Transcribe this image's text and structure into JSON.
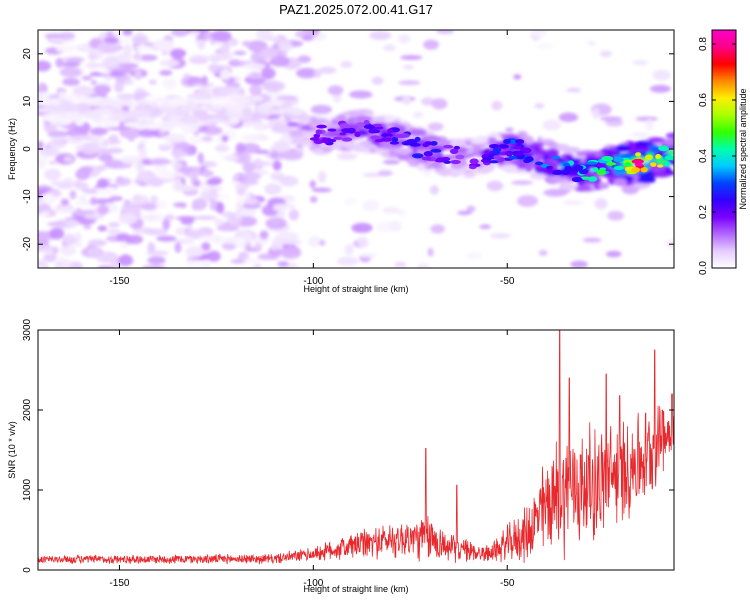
{
  "title": "PAZ1.2025.072.00.41.G17",
  "chart_data": [
    {
      "type": "heatmap",
      "xlabel": "Height of straight line (km)",
      "ylabel": "Frequency (Hz)",
      "xlim": [
        -171,
        -7
      ],
      "ylim": [
        -25,
        25
      ],
      "xticks": [
        -150,
        -100,
        -50
      ],
      "yticks": [
        20,
        10,
        0,
        -10,
        -20
      ],
      "colorbar": {
        "label": "Normalized spectral amplitude",
        "range": [
          0,
          0.85
        ],
        "ticks": [
          0.0,
          0.2,
          0.4,
          0.6,
          0.8
        ],
        "colors": [
          "#ffffff",
          "#e6ccff",
          "#b266ff",
          "#7a00ff",
          "#3300ff",
          "#0044ff",
          "#00ccff",
          "#00ffaa",
          "#33ff00",
          "#aaff00",
          "#ffee00",
          "#ff8800",
          "#ff0000",
          "#ff0088",
          "#ff00cc"
        ]
      },
      "ridge": [
        {
          "x": -171,
          "y": 9,
          "a": 0.05
        },
        {
          "x": -150,
          "y": 8,
          "a": 0.06
        },
        {
          "x": -130,
          "y": 7,
          "a": 0.07
        },
        {
          "x": -115,
          "y": 8,
          "a": 0.08
        },
        {
          "x": -105,
          "y": 5,
          "a": 0.12
        },
        {
          "x": -97,
          "y": 3,
          "a": 0.2
        },
        {
          "x": -88,
          "y": 4,
          "a": 0.22
        },
        {
          "x": -78,
          "y": 2,
          "a": 0.25
        },
        {
          "x": -68,
          "y": -1,
          "a": 0.25
        },
        {
          "x": -58,
          "y": -2,
          "a": 0.2
        },
        {
          "x": -48,
          "y": 0,
          "a": 0.3
        },
        {
          "x": -38,
          "y": -3,
          "a": 0.35
        },
        {
          "x": -30,
          "y": -5,
          "a": 0.4
        },
        {
          "x": -22,
          "y": -3,
          "a": 0.5
        },
        {
          "x": -16,
          "y": -3,
          "a": 0.85
        },
        {
          "x": -7,
          "y": -1,
          "a": 0.45
        }
      ]
    },
    {
      "type": "line",
      "xlabel": "Height of straight line (km)",
      "ylabel": "SNR (10 * v/v)",
      "xlim": [
        -171,
        -7
      ],
      "ylim": [
        0,
        3000
      ],
      "xticks": [
        -150,
        -100,
        -50
      ],
      "yticks": [
        0,
        1000,
        2000,
        3000
      ],
      "color": "#e8282c",
      "envelope": [
        {
          "x": -171,
          "base": 130,
          "amp": 60
        },
        {
          "x": -110,
          "base": 140,
          "amp": 70
        },
        {
          "x": -100,
          "base": 200,
          "amp": 100
        },
        {
          "x": -90,
          "base": 300,
          "amp": 200
        },
        {
          "x": -80,
          "base": 380,
          "amp": 250
        },
        {
          "x": -70,
          "base": 400,
          "amp": 350
        },
        {
          "x": -65,
          "base": 280,
          "amp": 200
        },
        {
          "x": -55,
          "base": 200,
          "amp": 120
        },
        {
          "x": -45,
          "base": 450,
          "amp": 400
        },
        {
          "x": -40,
          "base": 800,
          "amp": 700
        },
        {
          "x": -35,
          "base": 1000,
          "amp": 900
        },
        {
          "x": -25,
          "base": 1100,
          "amp": 800
        },
        {
          "x": -15,
          "base": 1400,
          "amp": 700
        },
        {
          "x": -7,
          "base": 1800,
          "amp": 400
        }
      ],
      "peaks": [
        {
          "x": -71,
          "y": 1520
        },
        {
          "x": -63,
          "y": 1060
        },
        {
          "x": -36.5,
          "y": 3000
        },
        {
          "x": -34,
          "y": 2400
        },
        {
          "x": -24.5,
          "y": 2450
        },
        {
          "x": -21,
          "y": 2180
        },
        {
          "x": -12,
          "y": 2750
        },
        {
          "x": -10,
          "y": 2000
        },
        {
          "x": -7.5,
          "y": 2200
        }
      ]
    }
  ]
}
